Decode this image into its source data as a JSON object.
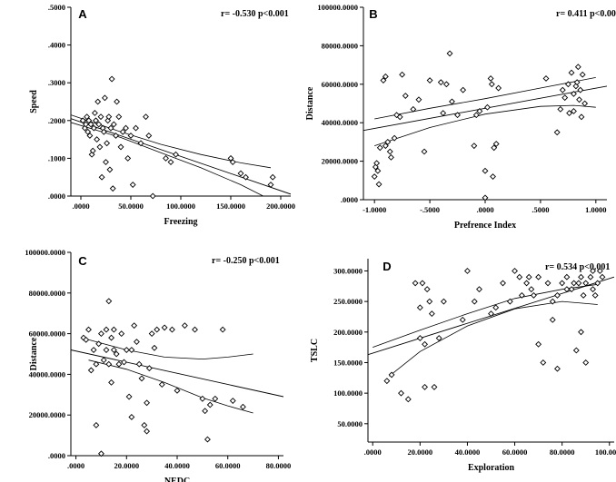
{
  "chart_data": [
    {
      "type": "scatter",
      "panel_label": "A",
      "annotation": "r= -0.530  p<0.001",
      "xlabel": "Freezing",
      "ylabel": "Speed",
      "xlim": [
        -0.01,
        0.21
      ],
      "ylim": [
        0,
        0.5
      ],
      "xticks": [
        0,
        0.05,
        0.1,
        0.15,
        0.2
      ],
      "xtick_labels": [
        ".0000",
        "50.0000",
        "100.0000",
        "150.0000",
        "200.0000"
      ],
      "yticks": [
        0,
        0.1,
        0.2,
        0.3,
        0.4,
        0.5
      ],
      "ytick_labels": [
        ".0000",
        ".1000",
        ".2000",
        ".3000",
        ".4000",
        ".5000"
      ],
      "points": [
        [
          0.002,
          0.2
        ],
        [
          0.004,
          0.18
        ],
        [
          0.005,
          0.19
        ],
        [
          0.006,
          0.21
        ],
        [
          0.007,
          0.17
        ],
        [
          0.008,
          0.2
        ],
        [
          0.009,
          0.16
        ],
        [
          0.01,
          0.19
        ],
        [
          0.011,
          0.11
        ],
        [
          0.012,
          0.12
        ],
        [
          0.013,
          0.18
        ],
        [
          0.014,
          0.22
        ],
        [
          0.015,
          0.2
        ],
        [
          0.016,
          0.15
        ],
        [
          0.017,
          0.25
        ],
        [
          0.018,
          0.19
        ],
        [
          0.019,
          0.13
        ],
        [
          0.02,
          0.21
        ],
        [
          0.021,
          0.05
        ],
        [
          0.022,
          0.18
        ],
        [
          0.023,
          0.17
        ],
        [
          0.024,
          0.26
        ],
        [
          0.025,
          0.09
        ],
        [
          0.026,
          0.14
        ],
        [
          0.027,
          0.2
        ],
        [
          0.028,
          0.21
        ],
        [
          0.029,
          0.07
        ],
        [
          0.03,
          0.18
        ],
        [
          0.031,
          0.31
        ],
        [
          0.032,
          0.02
        ],
        [
          0.033,
          0.19
        ],
        [
          0.035,
          0.16
        ],
        [
          0.036,
          0.25
        ],
        [
          0.038,
          0.21
        ],
        [
          0.04,
          0.13
        ],
        [
          0.042,
          0.17
        ],
        [
          0.045,
          0.18
        ],
        [
          0.047,
          0.1
        ],
        [
          0.05,
          0.16
        ],
        [
          0.052,
          0.03
        ],
        [
          0.055,
          0.18
        ],
        [
          0.06,
          0.14
        ],
        [
          0.065,
          0.21
        ],
        [
          0.068,
          0.16
        ],
        [
          0.072,
          0.0
        ],
        [
          0.085,
          0.1
        ],
        [
          0.09,
          0.09
        ],
        [
          0.095,
          0.11
        ],
        [
          0.15,
          0.1
        ],
        [
          0.152,
          0.09
        ],
        [
          0.16,
          0.06
        ],
        [
          0.165,
          0.05
        ],
        [
          0.19,
          0.03
        ],
        [
          0.192,
          0.05
        ]
      ],
      "fit_line": [
        [
          -0.01,
          0.205
        ],
        [
          0.21,
          0.005
        ]
      ],
      "ci_upper": [
        [
          -0.01,
          0.215
        ],
        [
          0.04,
          0.17
        ],
        [
          0.08,
          0.137
        ],
        [
          0.12,
          0.11
        ],
        [
          0.16,
          0.088
        ],
        [
          0.19,
          0.075
        ]
      ],
      "ci_lower": [
        [
          -0.01,
          0.195
        ],
        [
          0.04,
          0.155
        ],
        [
          0.08,
          0.115
        ],
        [
          0.12,
          0.075
        ],
        [
          0.16,
          0.03
        ],
        [
          0.19,
          -0.01
        ]
      ]
    },
    {
      "type": "scatter",
      "panel_label": "B",
      "annotation": "r= 0.411 p<0.001",
      "xlabel": "Prefrence Index",
      "ylabel": "Distance",
      "xlim": [
        -1.1,
        1.1
      ],
      "ylim": [
        0,
        100000
      ],
      "xticks": [
        -1,
        -0.5,
        0,
        0.5,
        1
      ],
      "xtick_labels": [
        "-1.0000",
        "-.5000",
        ".0000",
        ".5000",
        "1.0000"
      ],
      "yticks": [
        0,
        20000,
        40000,
        60000,
        80000,
        100000
      ],
      "ytick_labels": [
        ".0000",
        "20000.0000",
        "40000.0000",
        "60000.0000",
        "80000.0000",
        "100000.0000"
      ],
      "points": [
        [
          -1.0,
          12000
        ],
        [
          -0.99,
          17000
        ],
        [
          -0.98,
          19000
        ],
        [
          -0.97,
          15000
        ],
        [
          -0.96,
          8000
        ],
        [
          -0.95,
          27000
        ],
        [
          -0.92,
          62000
        ],
        [
          -0.9,
          64000
        ],
        [
          -0.9,
          28000
        ],
        [
          -0.88,
          30000
        ],
        [
          -0.86,
          25000
        ],
        [
          -0.85,
          22000
        ],
        [
          -0.82,
          32000
        ],
        [
          -0.8,
          44000
        ],
        [
          -0.77,
          43000
        ],
        [
          -0.75,
          65000
        ],
        [
          -0.72,
          54000
        ],
        [
          -0.65,
          47000
        ],
        [
          -0.6,
          52000
        ],
        [
          -0.55,
          25000
        ],
        [
          -0.5,
          62000
        ],
        [
          -0.4,
          61000
        ],
        [
          -0.38,
          45000
        ],
        [
          -0.35,
          60000
        ],
        [
          -0.32,
          76000
        ],
        [
          -0.3,
          51000
        ],
        [
          -0.25,
          44000
        ],
        [
          -0.2,
          57000
        ],
        [
          -0.1,
          28000
        ],
        [
          -0.08,
          44000
        ],
        [
          -0.05,
          46000
        ],
        [
          0.0,
          15000
        ],
        [
          0.02,
          48000
        ],
        [
          0.05,
          63000
        ],
        [
          0.06,
          60000
        ],
        [
          0.07,
          12000
        ],
        [
          0.08,
          27000
        ],
        [
          0.1,
          29000
        ],
        [
          0.12,
          58000
        ],
        [
          0.0,
          1000
        ],
        [
          0.55,
          63000
        ],
        [
          0.65,
          35000
        ],
        [
          0.68,
          47000
        ],
        [
          0.7,
          57000
        ],
        [
          0.72,
          53000
        ],
        [
          0.75,
          60000
        ],
        [
          0.76,
          45000
        ],
        [
          0.78,
          66000
        ],
        [
          0.8,
          46000
        ],
        [
          0.8,
          55000
        ],
        [
          0.82,
          59000
        ],
        [
          0.83,
          61000
        ],
        [
          0.84,
          69000
        ],
        [
          0.85,
          52000
        ],
        [
          0.86,
          57000
        ],
        [
          0.87,
          43000
        ],
        [
          0.88,
          65000
        ],
        [
          0.9,
          50000
        ]
      ],
      "fit_line": [
        [
          -1.1,
          36000
        ],
        [
          1.1,
          59000
        ]
      ],
      "ci_upper": [
        [
          -1.0,
          42000
        ],
        [
          -0.5,
          47500
        ],
        [
          0.0,
          52500
        ],
        [
          0.5,
          58000
        ],
        [
          1.0,
          63500
        ]
      ],
      "ci_lower": [
        [
          -1.0,
          28000
        ],
        [
          -0.5,
          37500
        ],
        [
          0.0,
          44500
        ],
        [
          0.5,
          48500
        ],
        [
          0.8,
          49000
        ],
        [
          1.0,
          48000
        ]
      ]
    },
    {
      "type": "scatter",
      "panel_label": "C",
      "annotation": "r= -0.250  p<0.001",
      "xlabel": "NEDC",
      "ylabel": "Distance",
      "xlim": [
        -0.02,
        0.82
      ],
      "ylim": [
        0,
        100000
      ],
      "xticks": [
        0,
        0.2,
        0.4,
        0.6,
        0.8
      ],
      "xtick_labels": [
        ".0000",
        "20.0000",
        "40.0000",
        "60.0000",
        "80.0000"
      ],
      "yticks": [
        0,
        20000,
        40000,
        60000,
        80000,
        100000
      ],
      "ytick_labels": [
        ".0000",
        "20000.0000",
        "40000.0000",
        "60000.0000",
        "80000.0000",
        "100000.0000"
      ],
      "points": [
        [
          0.03,
          58000
        ],
        [
          0.04,
          57000
        ],
        [
          0.05,
          62000
        ],
        [
          0.06,
          42000
        ],
        [
          0.07,
          52000
        ],
        [
          0.08,
          15000
        ],
        [
          0.08,
          45000
        ],
        [
          0.09,
          55000
        ],
        [
          0.1,
          1000
        ],
        [
          0.1,
          60000
        ],
        [
          0.11,
          47000
        ],
        [
          0.12,
          62000
        ],
        [
          0.12,
          52000
        ],
        [
          0.13,
          45000
        ],
        [
          0.13,
          76000
        ],
        [
          0.14,
          58000
        ],
        [
          0.14,
          36000
        ],
        [
          0.15,
          52000
        ],
        [
          0.15,
          62000
        ],
        [
          0.16,
          50000
        ],
        [
          0.17,
          45000
        ],
        [
          0.18,
          60000
        ],
        [
          0.19,
          46000
        ],
        [
          0.2,
          52000
        ],
        [
          0.21,
          29000
        ],
        [
          0.22,
          19000
        ],
        [
          0.22,
          52000
        ],
        [
          0.23,
          64000
        ],
        [
          0.24,
          56000
        ],
        [
          0.25,
          45000
        ],
        [
          0.26,
          38000
        ],
        [
          0.27,
          15000
        ],
        [
          0.28,
          12000
        ],
        [
          0.28,
          26000
        ],
        [
          0.29,
          43000
        ],
        [
          0.3,
          60000
        ],
        [
          0.31,
          53000
        ],
        [
          0.32,
          62000
        ],
        [
          0.34,
          35000
        ],
        [
          0.35,
          63000
        ],
        [
          0.38,
          62000
        ],
        [
          0.4,
          32000
        ],
        [
          0.43,
          64000
        ],
        [
          0.47,
          62000
        ],
        [
          0.5,
          28000
        ],
        [
          0.51,
          22000
        ],
        [
          0.52,
          8000
        ],
        [
          0.53,
          25000
        ],
        [
          0.55,
          28000
        ],
        [
          0.58,
          62000
        ],
        [
          0.62,
          27000
        ],
        [
          0.66,
          24000
        ]
      ],
      "fit_line": [
        [
          -0.02,
          52000
        ],
        [
          0.82,
          29000
        ]
      ],
      "ci_upper": [
        [
          0.05,
          57000
        ],
        [
          0.2,
          52000
        ],
        [
          0.35,
          48500
        ],
        [
          0.5,
          47500
        ],
        [
          0.6,
          48500
        ],
        [
          0.7,
          50000
        ]
      ],
      "ci_lower": [
        [
          0.05,
          47000
        ],
        [
          0.2,
          42500
        ],
        [
          0.35,
          36000
        ],
        [
          0.5,
          28500
        ],
        [
          0.6,
          24500
        ],
        [
          0.7,
          21000
        ]
      ]
    },
    {
      "type": "scatter",
      "panel_label": "D",
      "annotation": "r= 0.534  p<0.001",
      "xlabel": "Exploration",
      "ylabel": "TSLC",
      "xlim": [
        -0.02,
        1.02
      ],
      "ylim": [
        0.02,
        0.32
      ],
      "xticks": [
        0,
        0.2,
        0.4,
        0.6,
        0.8,
        1.0
      ],
      "xtick_labels": [
        ".0000",
        "20.0000",
        "40.0000",
        "60.0000",
        "80.0000",
        "100.0000"
      ],
      "yticks": [
        0.05,
        0.1,
        0.15,
        0.2,
        0.25,
        0.3
      ],
      "ytick_labels": [
        "50.0000",
        "100.0000",
        "150.0000",
        "200.0000",
        "250.0000",
        "300.0000"
      ],
      "points": [
        [
          0.06,
          0.12
        ],
        [
          0.08,
          0.13
        ],
        [
          0.12,
          0.1
        ],
        [
          0.15,
          0.09
        ],
        [
          0.18,
          0.28
        ],
        [
          0.2,
          0.24
        ],
        [
          0.2,
          0.19
        ],
        [
          0.21,
          0.28
        ],
        [
          0.22,
          0.18
        ],
        [
          0.22,
          0.11
        ],
        [
          0.23,
          0.27
        ],
        [
          0.24,
          0.25
        ],
        [
          0.25,
          0.23
        ],
        [
          0.26,
          0.11
        ],
        [
          0.28,
          0.19
        ],
        [
          0.3,
          0.25
        ],
        [
          0.38,
          0.22
        ],
        [
          0.4,
          0.3
        ],
        [
          0.43,
          0.25
        ],
        [
          0.45,
          0.27
        ],
        [
          0.5,
          0.23
        ],
        [
          0.52,
          0.24
        ],
        [
          0.55,
          0.28
        ],
        [
          0.58,
          0.25
        ],
        [
          0.6,
          0.3
        ],
        [
          0.62,
          0.29
        ],
        [
          0.63,
          0.26
        ],
        [
          0.65,
          0.28
        ],
        [
          0.66,
          0.29
        ],
        [
          0.67,
          0.27
        ],
        [
          0.68,
          0.26
        ],
        [
          0.7,
          0.29
        ],
        [
          0.7,
          0.18
        ],
        [
          0.72,
          0.15
        ],
        [
          0.74,
          0.28
        ],
        [
          0.76,
          0.25
        ],
        [
          0.76,
          0.22
        ],
        [
          0.78,
          0.14
        ],
        [
          0.78,
          0.26
        ],
        [
          0.8,
          0.28
        ],
        [
          0.82,
          0.29
        ],
        [
          0.82,
          0.27
        ],
        [
          0.84,
          0.27
        ],
        [
          0.85,
          0.28
        ],
        [
          0.86,
          0.17
        ],
        [
          0.87,
          0.28
        ],
        [
          0.88,
          0.29
        ],
        [
          0.88,
          0.2
        ],
        [
          0.89,
          0.26
        ],
        [
          0.9,
          0.28
        ],
        [
          0.9,
          0.15
        ],
        [
          0.92,
          0.29
        ],
        [
          0.93,
          0.3
        ],
        [
          0.93,
          0.27
        ],
        [
          0.94,
          0.26
        ],
        [
          0.95,
          0.28
        ],
        [
          0.96,
          0.3
        ],
        [
          0.97,
          0.29
        ]
      ],
      "fit_line": [
        [
          -0.02,
          0.163
        ],
        [
          1.02,
          0.29
        ]
      ],
      "ci_upper": [
        [
          0.0,
          0.175
        ],
        [
          0.2,
          0.203
        ],
        [
          0.4,
          0.23
        ],
        [
          0.6,
          0.255
        ],
        [
          0.8,
          0.27
        ],
        [
          0.95,
          0.278
        ]
      ],
      "ci_lower": [
        [
          0.07,
          0.128
        ],
        [
          0.2,
          0.168
        ],
        [
          0.4,
          0.21
        ],
        [
          0.6,
          0.238
        ],
        [
          0.8,
          0.25
        ],
        [
          0.95,
          0.245
        ]
      ]
    }
  ]
}
